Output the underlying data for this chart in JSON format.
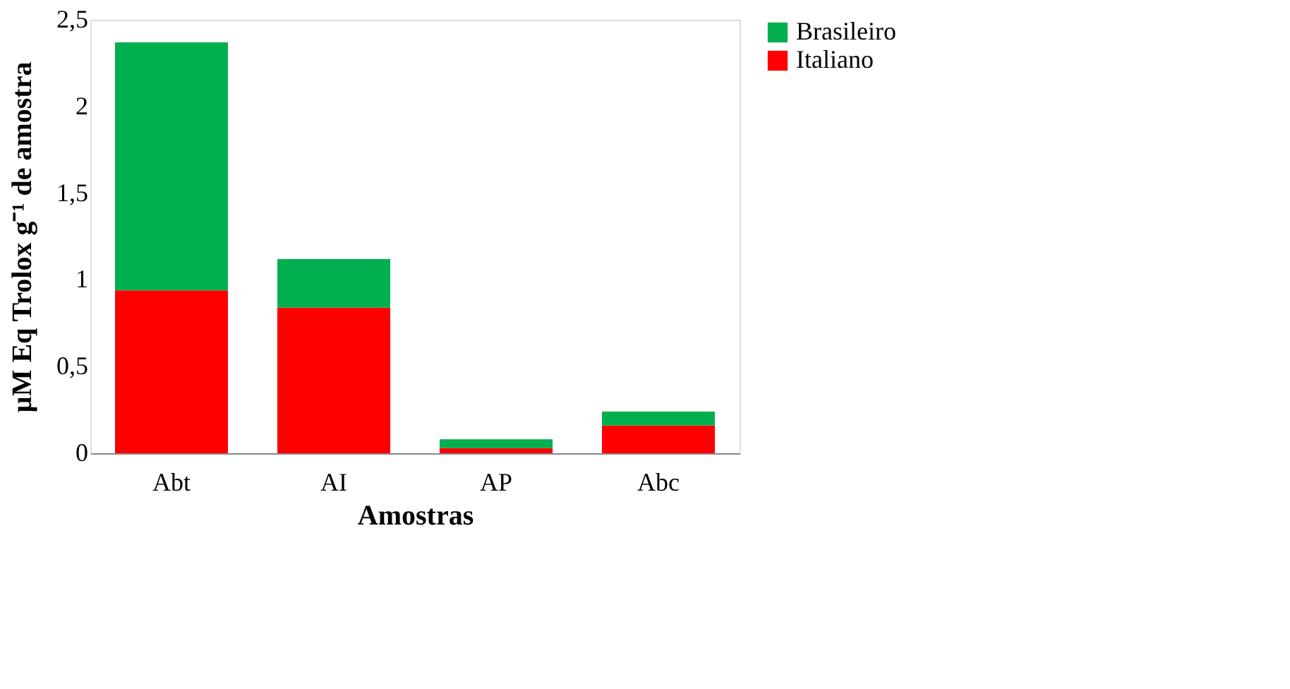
{
  "chart_data": {
    "type": "bar",
    "stacked": true,
    "xlabel": "Amostras",
    "ylabel": "µM Eq Trolox g⁻¹  de amostra",
    "categories": [
      "Abt",
      "AI",
      "AP",
      "Abc"
    ],
    "series": [
      {
        "name": "Italiano",
        "color": "#ff0000",
        "values": [
          0.94,
          0.84,
          0.03,
          0.16
        ]
      },
      {
        "name": "Brasileiro",
        "color": "#00b050",
        "values": [
          1.43,
          0.28,
          0.05,
          0.08
        ]
      }
    ],
    "ylim": [
      0,
      2.5
    ],
    "yticks": [
      0,
      {
        "value": 0.5,
        "label": "0,5"
      },
      1,
      {
        "value": 1.5,
        "label": "1,5"
      },
      2,
      {
        "value": 2.5,
        "label": "2,5"
      }
    ],
    "grid": false,
    "legend": "right"
  }
}
